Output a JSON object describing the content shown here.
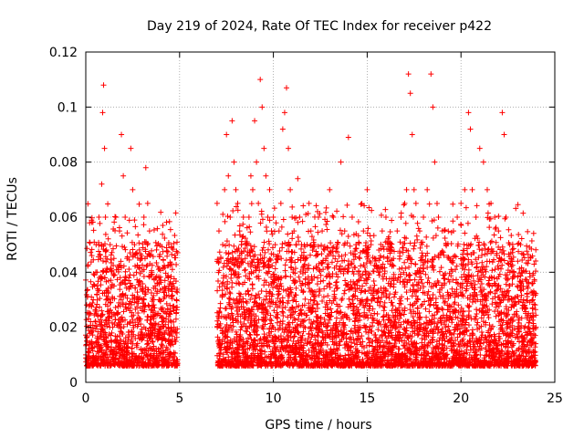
{
  "chart_data": {
    "type": "scatter",
    "title": "Day 219 of 2024, Rate Of TEC Index for receiver p422",
    "xlabel": "GPS time / hours",
    "ylabel": "ROTI / TECUs",
    "xlim": [
      0,
      25
    ],
    "ylim": [
      0,
      0.12
    ],
    "xticks": [
      0,
      5,
      10,
      15,
      20,
      25
    ],
    "xtick_labels": [
      "0",
      "5",
      "10",
      "15",
      "20",
      "25"
    ],
    "yticks": [
      0,
      0.02,
      0.04,
      0.06,
      0.08,
      0.1,
      0.12
    ],
    "ytick_labels": [
      "0",
      "0.02",
      "0.04",
      "0.06",
      "0.08",
      "0.1",
      "0.12"
    ],
    "grid": true,
    "marker": "+",
    "color": "#ff0000",
    "series": [
      {
        "name": "p422",
        "description": "dense ROTI samples; data gap between ~4.9 h and ~7.0 h",
        "x": [
          0.05,
          0.15,
          0.25,
          0.3,
          0.4,
          0.5,
          0.55,
          0.6,
          0.7,
          0.8,
          0.85,
          0.9,
          0.95,
          1.0,
          1.05,
          1.1,
          1.2,
          1.3,
          1.4,
          1.5,
          1.6,
          1.7,
          1.8,
          1.9,
          2.0,
          2.1,
          2.2,
          2.3,
          2.4,
          2.5,
          2.6,
          2.7,
          2.8,
          2.9,
          3.0,
          3.1,
          3.2,
          3.3,
          3.4,
          3.5,
          3.6,
          3.7,
          3.8,
          3.9,
          4.0,
          4.1,
          4.2,
          4.3,
          4.4,
          4.5,
          4.6,
          4.7,
          4.8,
          7.0,
          7.1,
          7.2,
          7.3,
          7.4,
          7.5,
          7.6,
          7.7,
          7.8,
          7.9,
          8.0,
          8.1,
          8.2,
          8.3,
          8.4,
          8.5,
          8.6,
          8.7,
          8.8,
          8.9,
          9.0,
          9.1,
          9.2,
          9.3,
          9.4,
          9.5,
          9.6,
          9.7,
          9.8,
          9.9,
          10.0,
          10.1,
          10.2,
          10.3,
          10.4,
          10.5,
          10.6,
          10.7,
          10.8,
          10.9,
          11.0,
          11.1,
          11.2,
          11.3,
          11.4,
          11.5,
          11.6,
          11.7,
          11.8,
          11.9,
          12.0,
          12.2,
          12.4,
          12.6,
          12.8,
          13.0,
          13.2,
          13.4,
          13.6,
          13.8,
          14.0,
          14.2,
          14.4,
          14.6,
          14.8,
          15.0,
          15.2,
          15.4,
          15.6,
          15.8,
          16.0,
          16.2,
          16.4,
          16.6,
          16.8,
          17.0,
          17.1,
          17.2,
          17.3,
          17.4,
          17.5,
          17.6,
          17.8,
          18.0,
          18.2,
          18.4,
          18.5,
          18.6,
          18.8,
          19.0,
          19.2,
          19.4,
          19.6,
          19.8,
          20.0,
          20.2,
          20.4,
          20.5,
          20.6,
          20.8,
          21.0,
          21.2,
          21.4,
          21.6,
          21.8,
          22.0,
          22.2,
          22.3,
          22.4,
          22.6,
          22.8,
          23.0,
          23.2,
          23.4,
          23.6,
          23.8,
          24.0
        ],
        "y": [
          0.015,
          0.02,
          0.025,
          0.018,
          0.03,
          0.022,
          0.05,
          0.035,
          0.06,
          0.045,
          0.072,
          0.098,
          0.108,
          0.085,
          0.06,
          0.04,
          0.03,
          0.05,
          0.035,
          0.045,
          0.06,
          0.042,
          0.055,
          0.09,
          0.075,
          0.06,
          0.045,
          0.038,
          0.085,
          0.07,
          0.05,
          0.04,
          0.03,
          0.035,
          0.045,
          0.06,
          0.078,
          0.065,
          0.055,
          0.04,
          0.03,
          0.035,
          0.025,
          0.03,
          0.02,
          0.022,
          0.018,
          0.025,
          0.02,
          0.018,
          0.015,
          0.02,
          0.018,
          0.065,
          0.055,
          0.045,
          0.05,
          0.07,
          0.09,
          0.075,
          0.06,
          0.095,
          0.08,
          0.07,
          0.065,
          0.055,
          0.05,
          0.06,
          0.045,
          0.05,
          0.06,
          0.075,
          0.07,
          0.095,
          0.08,
          0.065,
          0.11,
          0.1,
          0.085,
          0.075,
          0.06,
          0.07,
          0.055,
          0.06,
          0.05,
          0.045,
          0.055,
          0.065,
          0.092,
          0.098,
          0.107,
          0.085,
          0.07,
          0.06,
          0.055,
          0.05,
          0.074,
          0.06,
          0.05,
          0.045,
          0.04,
          0.05,
          0.065,
          0.055,
          0.05,
          0.06,
          0.055,
          0.045,
          0.07,
          0.06,
          0.05,
          0.08,
          0.055,
          0.089,
          0.06,
          0.05,
          0.045,
          0.055,
          0.07,
          0.05,
          0.045,
          0.04,
          0.055,
          0.06,
          0.05,
          0.045,
          0.055,
          0.06,
          0.065,
          0.07,
          0.112,
          0.105,
          0.09,
          0.07,
          0.065,
          0.055,
          0.06,
          0.07,
          0.112,
          0.1,
          0.08,
          0.06,
          0.055,
          0.05,
          0.045,
          0.055,
          0.06,
          0.065,
          0.07,
          0.098,
          0.092,
          0.07,
          0.06,
          0.085,
          0.08,
          0.07,
          0.065,
          0.06,
          0.055,
          0.098,
          0.09,
          0.06,
          0.05,
          0.04,
          0.035,
          0.03,
          0.028,
          0.025,
          0.03,
          0.02
        ]
      }
    ]
  }
}
